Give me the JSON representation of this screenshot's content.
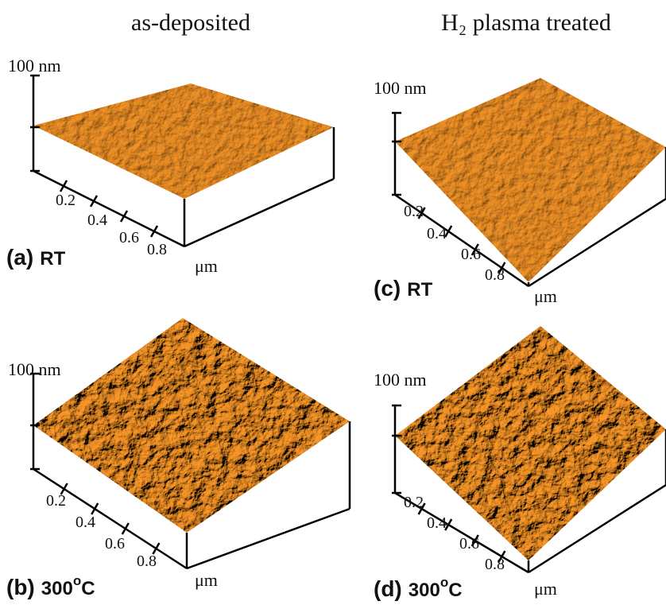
{
  "column_titles": [
    "as-deposited",
    "H₂ plasma treated"
  ],
  "panels": [
    {
      "letter": "(a)",
      "condition": "RT",
      "z_label": "100 nm",
      "ticks": [
        "0.2",
        "0.4",
        "0.6",
        "0.8"
      ],
      "unit": "μm"
    },
    {
      "letter": "(b)",
      "condition": "300",
      "superscript": "o",
      "condition_unit": "C",
      "z_label": "100 nm",
      "ticks": [
        "0.2",
        "0.4",
        "0.6",
        "0.8"
      ],
      "unit": "μm"
    },
    {
      "letter": "(c)",
      "condition": "RT",
      "z_label": "100 nm",
      "ticks": [
        "0.2",
        "0.4",
        "0.6",
        "0.8"
      ],
      "unit": "μm"
    },
    {
      "letter": "(d)",
      "condition": "300",
      "superscript": "o",
      "condition_unit": "C",
      "z_label": "100 nm",
      "ticks": [
        "0.2",
        "0.4",
        "0.6",
        "0.8"
      ],
      "unit": "μm"
    }
  ]
}
